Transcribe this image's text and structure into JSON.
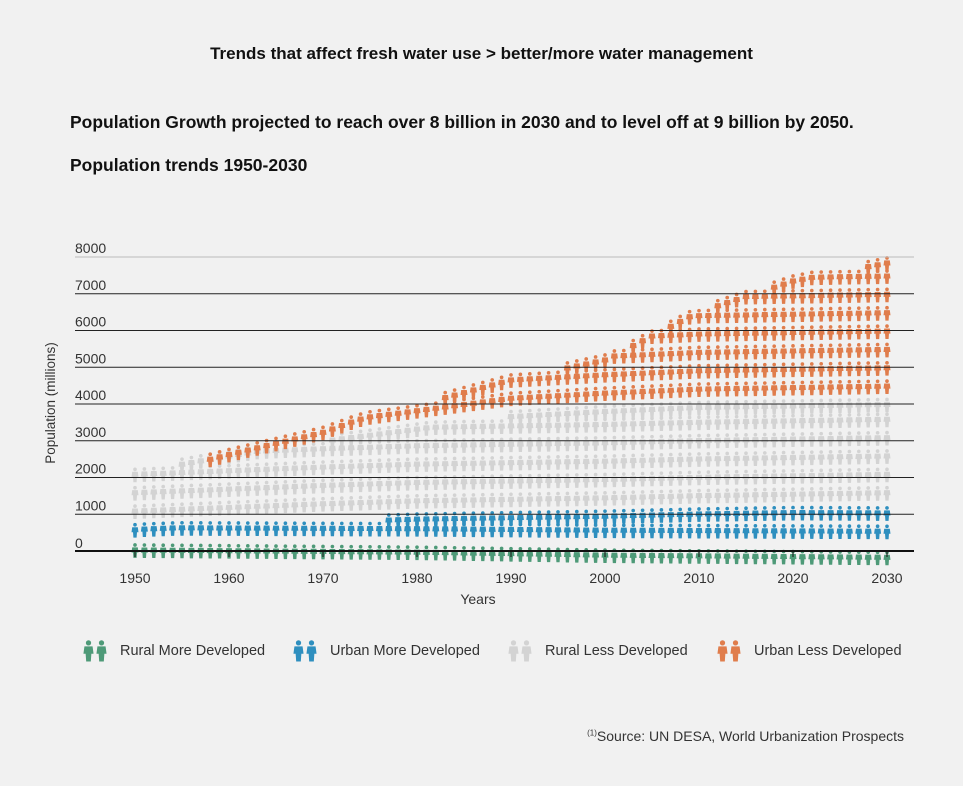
{
  "header": {
    "title": "Trends that affect fresh water use > better/more water management",
    "headline": "Population Growth projected to reach over 8 billion in 2030 and to level off at 9 billion by 2050.",
    "subtitle": "Population trends 1950-2030"
  },
  "source": {
    "sup": "(1)",
    "text": "Source: UN DESA, World Urbanization Prospects"
  },
  "colors": {
    "rural_more": "#4e9a78",
    "urban_more": "#2e8fbf",
    "rural_less": "#d3d3d3",
    "urban_less": "#e07d4c",
    "grid": "#222222",
    "axis": "#111111"
  },
  "chart_data": {
    "type": "area",
    "title": "Population trends 1950-2030",
    "xlabel": "Years",
    "ylabel": "Population (millions)",
    "xlim": [
      1950,
      2030
    ],
    "ylim": [
      0,
      8000
    ],
    "x_ticks": [
      1950,
      1960,
      1970,
      1980,
      1990,
      2000,
      2010,
      2020,
      2030
    ],
    "y_ticks": [
      0,
      1000,
      2000,
      3000,
      4000,
      5000,
      6000,
      7000,
      8000
    ],
    "stacked": true,
    "x": [
      1950,
      1960,
      1970,
      1980,
      1990,
      2000,
      2010,
      2020,
      2030
    ],
    "series": [
      {
        "name": "Rural More Developed",
        "color_key": "rural_more",
        "values": [
          350,
          340,
          330,
          320,
          300,
          280,
          270,
          260,
          250
        ]
      },
      {
        "name": "Urban More Developed",
        "color_key": "urban_more",
        "values": [
          450,
          560,
          670,
          760,
          820,
          880,
          950,
          1000,
          1050
        ]
      },
      {
        "name": "Rural Less Developed",
        "color_key": "rural_less",
        "values": [
          1550,
          1900,
          2200,
          2450,
          2750,
          2850,
          2900,
          2900,
          2900
        ]
      },
      {
        "name": "Urban Less Developed",
        "color_key": "urban_less",
        "values": [
          150,
          250,
          350,
          650,
          1000,
          1400,
          2600,
          3400,
          3850
        ]
      }
    ],
    "legend_position": "bottom"
  }
}
